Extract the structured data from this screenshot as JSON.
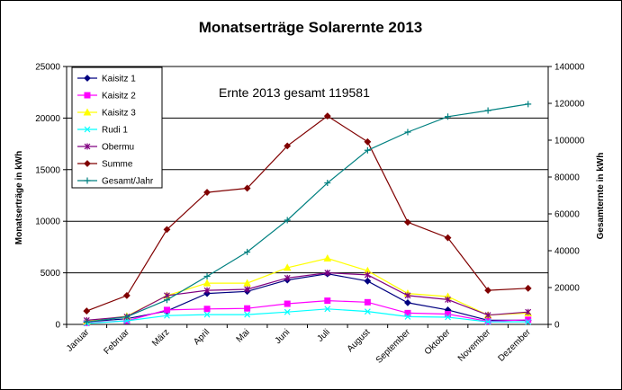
{
  "chart_data": {
    "type": "line",
    "title": "Monatserträge Solarernte 2013",
    "annotation": "Ernte 2013 gesamt 119581",
    "ylabel_left": "Monatserträge in kWh",
    "ylabel_right": "Gesamternte in kWh",
    "ylim_left": [
      0,
      25000
    ],
    "ylim_right": [
      0,
      140000
    ],
    "yticks_left": [
      "0",
      "5000",
      "10000",
      "15000",
      "20000",
      "25000"
    ],
    "yticks_right": [
      "0",
      "20000",
      "40000",
      "60000",
      "80000",
      "100000",
      "120000",
      "140000"
    ],
    "grid": "horizontal",
    "legend_position": "top-left",
    "categories": [
      "Januar",
      "Februar",
      "März",
      "April",
      "Mai",
      "Juni",
      "Juli",
      "August",
      "September",
      "Oktober",
      "November",
      "Dezember"
    ],
    "series": [
      {
        "name": "Kaisitz 1",
        "axis": "left",
        "color": "#000080",
        "marker": "diamond",
        "values": [
          250,
          550,
          1300,
          3000,
          3200,
          4300,
          4900,
          4200,
          2100,
          1400,
          400,
          400
        ]
      },
      {
        "name": "Kaisitz 2",
        "axis": "left",
        "color": "#FF00FF",
        "marker": "square",
        "values": [
          150,
          350,
          1400,
          1500,
          1550,
          2000,
          2300,
          2150,
          1100,
          1000,
          300,
          450
        ]
      },
      {
        "name": "Kaisitz 3",
        "axis": "left",
        "color": "#FFFF00",
        "marker": "triangle",
        "values": [
          300,
          800,
          2800,
          4000,
          4000,
          5500,
          6400,
          5200,
          3000,
          2700,
          900,
          1100
        ]
      },
      {
        "name": "Rudi 1",
        "axis": "left",
        "color": "#00FFFF",
        "marker": "x",
        "values": [
          100,
          350,
          850,
          950,
          950,
          1200,
          1500,
          1250,
          750,
          700,
          250,
          250
        ]
      },
      {
        "name": "Obermu",
        "axis": "left",
        "color": "#800080",
        "marker": "star",
        "values": [
          400,
          750,
          2800,
          3300,
          3400,
          4500,
          5000,
          4800,
          2800,
          2400,
          900,
          1200
        ]
      },
      {
        "name": "Summe",
        "axis": "left",
        "color": "#800000",
        "marker": "diamond",
        "values": [
          1300,
          2800,
          9200,
          12800,
          13200,
          17300,
          20200,
          17700,
          9900,
          8400,
          3300,
          3500
        ]
      },
      {
        "name": "Gesamt/Jahr",
        "axis": "right",
        "color": "#008080",
        "marker": "plus",
        "values": [
          1300,
          4100,
          13300,
          26100,
          39300,
          56600,
          76800,
          94500,
          104400,
          112800,
          116100,
          119581
        ]
      }
    ]
  }
}
